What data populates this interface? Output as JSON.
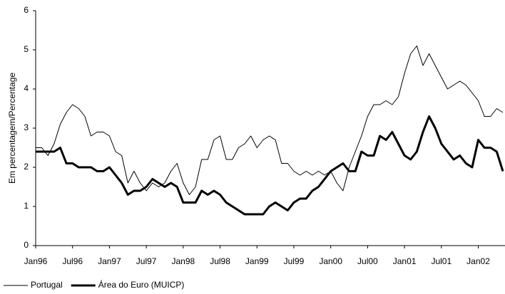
{
  "chart_data": {
    "type": "line",
    "y_label": "Em percentagem/Percentage",
    "categories": [
      "Jan96",
      null,
      null,
      null,
      null,
      null,
      "Jul96",
      null,
      null,
      null,
      null,
      null,
      "Jan97",
      null,
      null,
      null,
      null,
      null,
      "Jul97",
      null,
      null,
      null,
      null,
      null,
      "Jan98",
      null,
      null,
      null,
      null,
      null,
      "Jul98",
      null,
      null,
      null,
      null,
      null,
      "Jan99",
      null,
      null,
      null,
      null,
      null,
      "Jul99",
      null,
      null,
      null,
      null,
      null,
      "Jan00",
      null,
      null,
      null,
      null,
      null,
      "Jul00",
      null,
      null,
      null,
      null,
      null,
      "Jan01",
      null,
      null,
      null,
      null,
      null,
      "Jul01",
      null,
      null,
      null,
      null,
      null,
      "Jan02",
      null,
      null,
      null,
      null
    ],
    "series": [
      {
        "name": "Portugal",
        "color": "#000000",
        "width": 1,
        "values": [
          2.5,
          2.5,
          2.3,
          2.6,
          3.1,
          3.4,
          3.6,
          3.5,
          3.3,
          2.8,
          2.9,
          2.9,
          2.8,
          2.4,
          2.3,
          1.6,
          1.9,
          1.6,
          1.4,
          1.6,
          1.5,
          1.6,
          1.9,
          2.1,
          1.6,
          1.3,
          1.5,
          2.2,
          2.2,
          2.7,
          2.8,
          2.2,
          2.2,
          2.5,
          2.6,
          2.8,
          2.5,
          2.7,
          2.8,
          2.7,
          2.1,
          2.1,
          1.9,
          1.8,
          1.9,
          1.8,
          1.9,
          1.8,
          1.9,
          1.6,
          1.4,
          2.0,
          2.4,
          2.8,
          3.3,
          3.6,
          3.6,
          3.7,
          3.6,
          3.8,
          4.4,
          4.9,
          5.1,
          4.6,
          4.9,
          4.6,
          4.3,
          4.0,
          4.1,
          4.2,
          4.1,
          3.9,
          3.7,
          3.3,
          3.3,
          3.5,
          3.4
        ]
      },
      {
        "name": "Área do Euro (MUICP)",
        "color": "#000000",
        "width": 3,
        "values": [
          2.4,
          2.4,
          2.4,
          2.4,
          2.5,
          2.1,
          2.1,
          2.0,
          2.0,
          2.0,
          1.9,
          1.9,
          2.0,
          1.8,
          1.6,
          1.3,
          1.4,
          1.4,
          1.5,
          1.7,
          1.6,
          1.5,
          1.6,
          1.5,
          1.1,
          1.1,
          1.1,
          1.4,
          1.3,
          1.4,
          1.3,
          1.1,
          1.0,
          0.9,
          0.8,
          0.8,
          0.8,
          0.8,
          1.0,
          1.1,
          1.0,
          0.9,
          1.1,
          1.2,
          1.2,
          1.4,
          1.5,
          1.7,
          1.9,
          2.0,
          2.1,
          1.9,
          1.9,
          2.4,
          2.3,
          2.3,
          2.8,
          2.7,
          2.9,
          2.6,
          2.3,
          2.2,
          2.4,
          2.9,
          3.3,
          3.0,
          2.6,
          2.4,
          2.2,
          2.3,
          2.1,
          2.0,
          2.7,
          2.5,
          2.5,
          2.4,
          1.9
        ]
      }
    ],
    "ylim": [
      0,
      6
    ],
    "yticks": [
      0,
      1,
      2,
      3,
      4,
      5,
      6
    ],
    "grid": false,
    "legend": "bottom-left"
  }
}
